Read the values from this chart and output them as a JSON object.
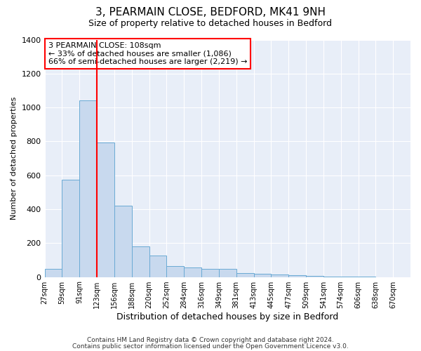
{
  "title": "3, PEARMAIN CLOSE, BEDFORD, MK41 9NH",
  "subtitle": "Size of property relative to detached houses in Bedford",
  "xlabel": "Distribution of detached houses by size in Bedford",
  "ylabel": "Number of detached properties",
  "bar_color": "#c8d9ee",
  "bar_edge_color": "#6aaad4",
  "background_color": "#e8eef8",
  "tick_labels": [
    "27sqm",
    "59sqm",
    "91sqm",
    "123sqm",
    "156sqm",
    "188sqm",
    "220sqm",
    "252sqm",
    "284sqm",
    "316sqm",
    "349sqm",
    "381sqm",
    "413sqm",
    "445sqm",
    "477sqm",
    "509sqm",
    "541sqm",
    "574sqm",
    "606sqm",
    "638sqm",
    "670sqm"
  ],
  "bar_values": [
    50,
    575,
    1040,
    795,
    420,
    180,
    125,
    65,
    55,
    50,
    50,
    25,
    20,
    15,
    10,
    5,
    2,
    1,
    1,
    0,
    0
  ],
  "ylim": [
    0,
    1400
  ],
  "yticks": [
    0,
    200,
    400,
    600,
    800,
    1000,
    1200,
    1400
  ],
  "redline_bin": 2,
  "annotation_title": "3 PEARMAIN CLOSE: 108sqm",
  "annotation_line1": "← 33% of detached houses are smaller (1,086)",
  "annotation_line2": "66% of semi-detached houses are larger (2,219) →",
  "footer1": "Contains HM Land Registry data © Crown copyright and database right 2024.",
  "footer2": "Contains public sector information licensed under the Open Government Licence v3.0."
}
